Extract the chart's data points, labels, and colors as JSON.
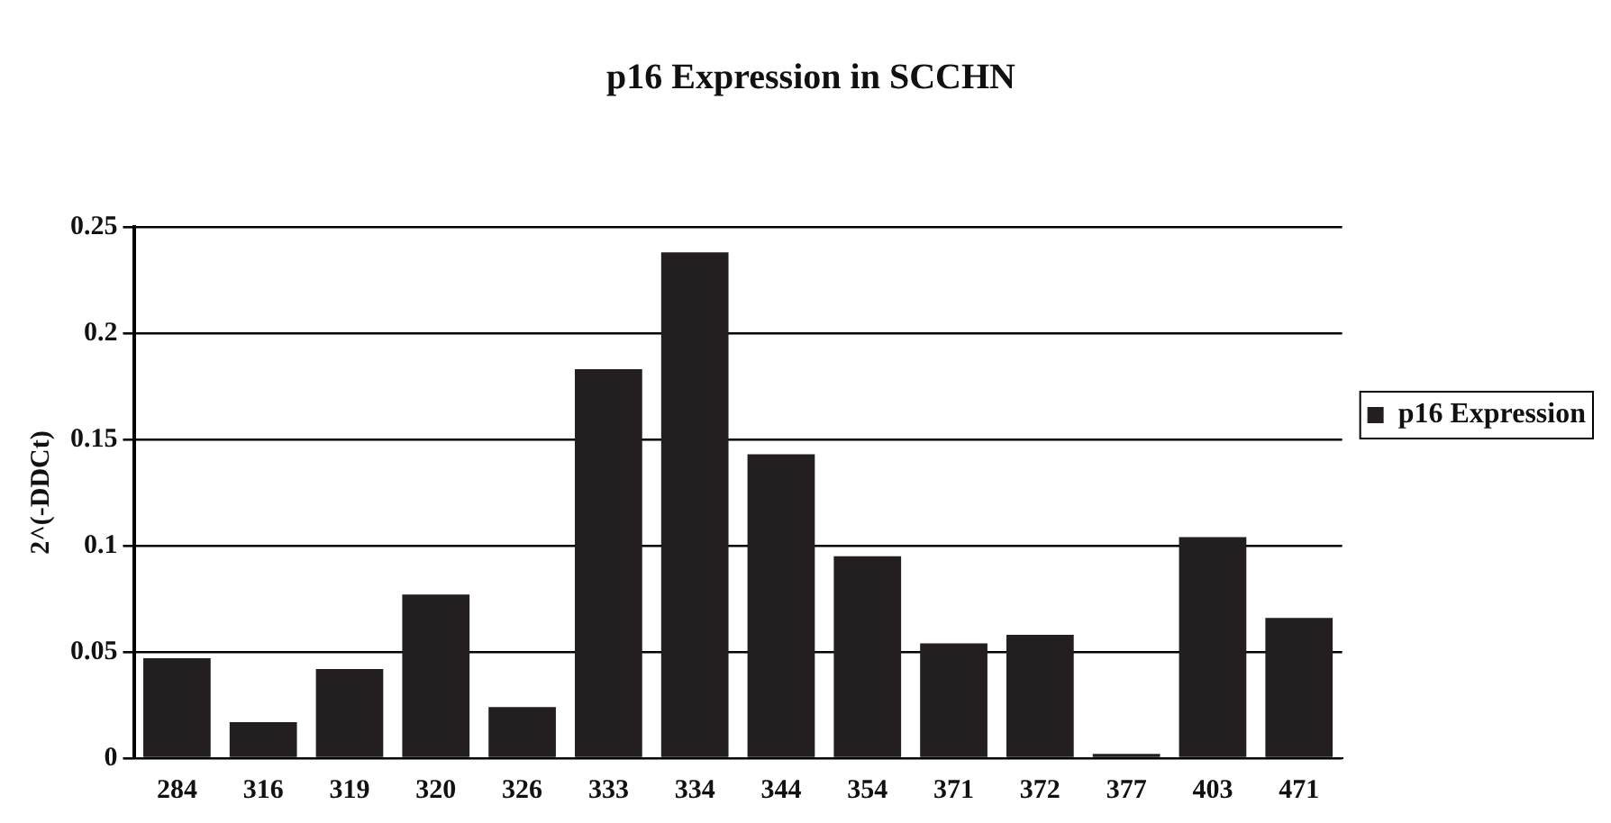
{
  "chart_data": {
    "type": "bar",
    "title": "p16 Expression in SCCHN",
    "ylabel": "2^(-DDCt)",
    "categories": [
      "284",
      "316",
      "319",
      "320",
      "326",
      "333",
      "334",
      "344",
      "354",
      "371",
      "372",
      "377",
      "403",
      "471"
    ],
    "series": [
      {
        "name": "p16 Expression",
        "color": "#231f20",
        "values": [
          0.047,
          0.017,
          0.042,
          0.077,
          0.024,
          0.183,
          0.238,
          0.143,
          0.095,
          0.054,
          0.058,
          0.002,
          0.104,
          0.066
        ]
      }
    ],
    "ylim": [
      0,
      0.25
    ],
    "yticks": [
      0,
      0.05,
      0.1,
      0.15,
      0.2,
      0.25
    ],
    "grid": "y",
    "legend": "right"
  }
}
